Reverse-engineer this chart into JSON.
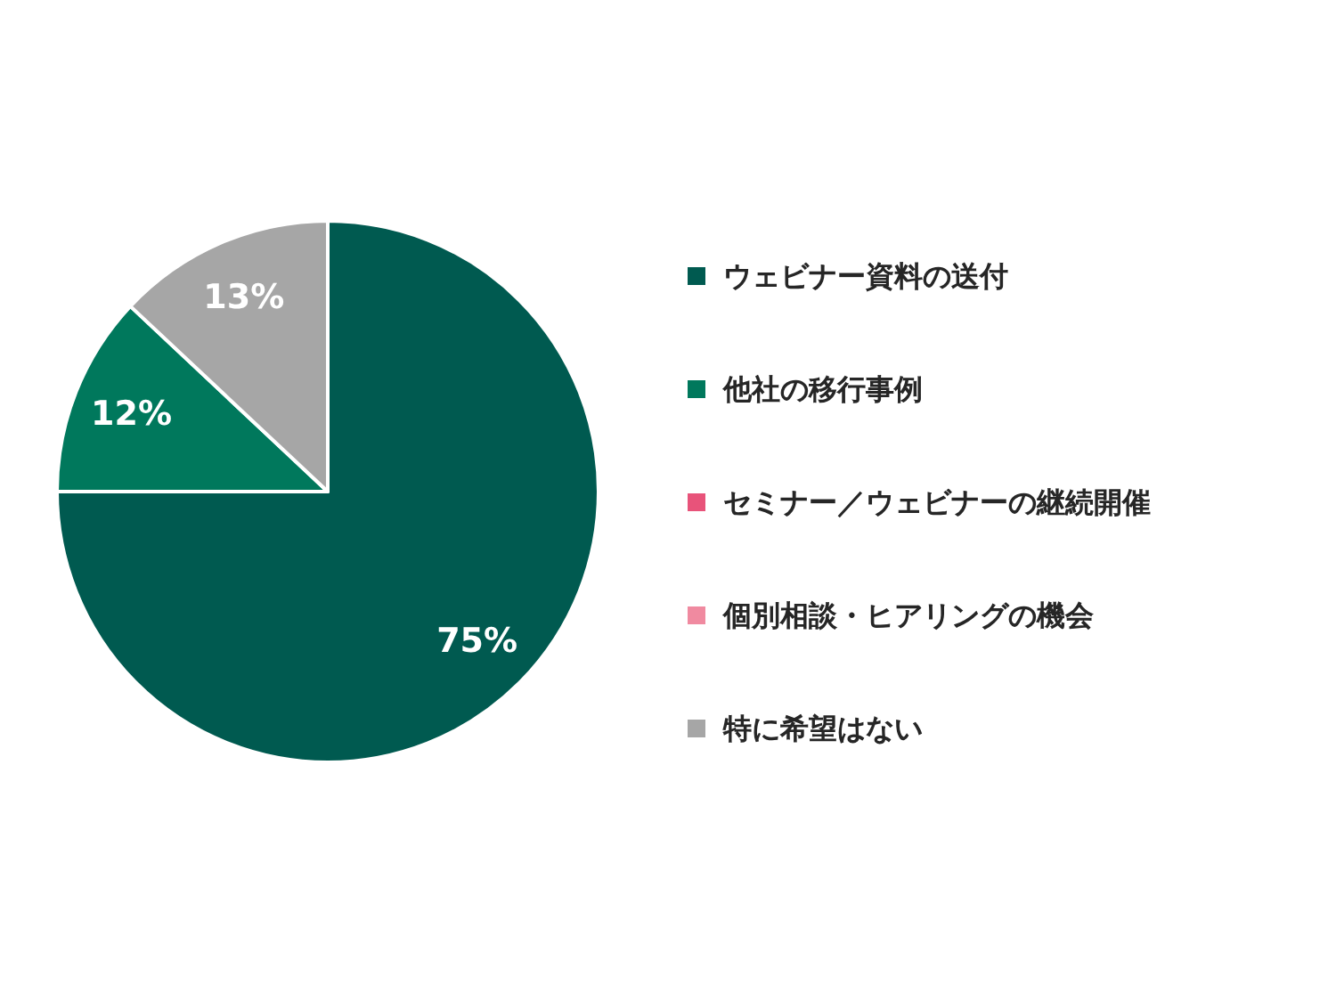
{
  "chart_data": {
    "type": "pie",
    "categories": [
      "ウェビナー資料の送付",
      "他社の移行事例",
      "セミナー／ウェビナーの継続開催",
      "個別相談・ヒアリングの機会",
      "特に希望はない"
    ],
    "values": [
      75,
      12,
      0,
      0,
      13
    ],
    "colors": [
      "#005a50",
      "#00785c",
      "#e8537a",
      "#f08aa0",
      "#a6a6a6"
    ],
    "value_labels": [
      "75%",
      "12%",
      null,
      null,
      "13%"
    ],
    "legend": "right"
  }
}
